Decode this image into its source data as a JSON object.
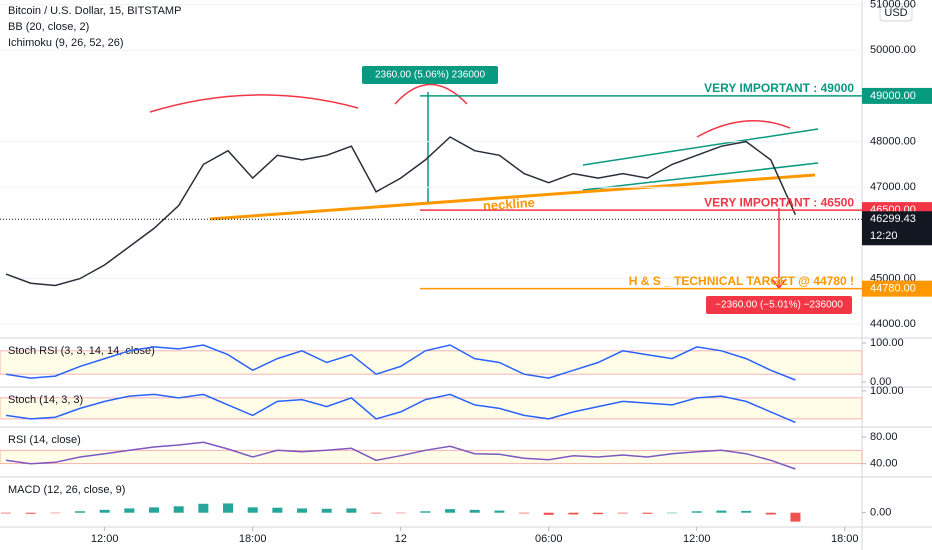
{
  "chart_data": [
    {
      "type": "line",
      "title": "Bitcoin / U.S. Dollar, 15, BITSTAMP",
      "indicators": [
        "BB (20, close, 2)",
        "Ichimoku (9, 26, 52, 26)"
      ],
      "currency": "USD",
      "categories": [
        null,
        null,
        null,
        null,
        "12:00",
        null,
        null,
        null,
        null,
        null,
        "18:00",
        null,
        null,
        null,
        null,
        null,
        "12",
        null,
        null,
        null,
        null,
        null,
        "06:00",
        null,
        null,
        null,
        null,
        null,
        "12:00",
        null,
        null,
        null,
        null,
        null,
        "18:00"
      ],
      "series": [
        {
          "name": "close",
          "color": "#2a2e39",
          "values": [
            45100,
            44900,
            44850,
            45000,
            45300,
            45700,
            46100,
            46600,
            47500,
            47800,
            47200,
            47700,
            47600,
            47700,
            47900,
            46900,
            47200,
            47600,
            48100,
            47800,
            47700,
            47300,
            47100,
            47300,
            47200,
            47300,
            47200,
            47500,
            47700,
            47900,
            48000,
            47600,
            46400,
            null,
            null
          ]
        }
      ],
      "ylim": [
        43700,
        51100
      ],
      "yticks": [
        {
          "value": 44000,
          "label": "44000.00"
        },
        {
          "value": 45000,
          "label": "45000.00"
        },
        {
          "value": 47000,
          "label": "47000.00"
        },
        {
          "value": 48000,
          "label": "48000.00"
        },
        {
          "value": 50000,
          "label": "50000.00"
        },
        {
          "value": 51000,
          "label": "51000.00"
        }
      ],
      "grid": true,
      "levels": [
        {
          "value": 49000,
          "price_label": "49000.00",
          "text": "VERY IMPORTANT : 49000",
          "color": "#089981"
        },
        {
          "value": 46500,
          "price_label": "46500.00",
          "text": "VERY IMPORTANT : 46500",
          "color": "#f23645"
        },
        {
          "value": 44780,
          "price_label": "44780.00",
          "text": "H & S _ TECHNICAL TARGET @ 44780 !",
          "color": "#ff9800"
        }
      ],
      "last_price": 46299.43,
      "countdown": "12:20",
      "measures": [
        "2360.00 (5.06%) 236000",
        "−2360.00 (−5.01%) −236000"
      ],
      "neckline": "neckline"
    },
    {
      "type": "line",
      "title": "Stoch RSI (3, 3, 14, 14, close)",
      "ylim": [
        -13,
        113
      ],
      "yticks": [
        {
          "value": 100,
          "label": "100.00"
        },
        {
          "value": 0,
          "label": "0.00"
        }
      ],
      "band": [
        20,
        80
      ],
      "series": [
        {
          "name": "K",
          "color": "#2962ff",
          "values": [
            20,
            10,
            15,
            40,
            60,
            80,
            90,
            85,
            95,
            70,
            30,
            60,
            80,
            50,
            70,
            20,
            40,
            80,
            95,
            60,
            50,
            20,
            10,
            30,
            50,
            80,
            70,
            60,
            90,
            80,
            60,
            30,
            5
          ]
        }
      ]
    },
    {
      "type": "line",
      "title": "Stoch (14, 3, 3)",
      "ylim": [
        -3,
        111
      ],
      "yticks": [
        {
          "value": 100,
          "label": "100.00"
        }
      ],
      "band": [
        20,
        80
      ],
      "series": [
        {
          "name": "K",
          "color": "#2962ff",
          "values": [
            30,
            20,
            25,
            50,
            70,
            85,
            90,
            80,
            90,
            60,
            30,
            70,
            75,
            55,
            80,
            20,
            40,
            75,
            90,
            60,
            50,
            30,
            20,
            40,
            55,
            70,
            65,
            60,
            80,
            85,
            70,
            40,
            10
          ]
        }
      ]
    },
    {
      "type": "line",
      "title": "RSI (14, close)",
      "ylim": [
        20,
        95
      ],
      "yticks": [
        {
          "value": 80,
          "label": "80.00"
        },
        {
          "value": 40,
          "label": "40.00"
        }
      ],
      "band": [
        40,
        60
      ],
      "series": [
        {
          "name": "RSI",
          "color": "#7e57c2",
          "values": [
            45,
            40,
            42,
            50,
            55,
            60,
            65,
            68,
            72,
            62,
            50,
            60,
            58,
            60,
            63,
            45,
            52,
            60,
            66,
            55,
            54,
            48,
            46,
            52,
            50,
            53,
            50,
            55,
            58,
            60,
            55,
            45,
            32
          ]
        }
      ]
    },
    {
      "type": "bar",
      "title": "MACD (12, 26, close, 9)",
      "ylim": [
        -400,
        1000
      ],
      "yticks": [
        {
          "value": 0,
          "label": "0.00"
        }
      ],
      "up_color": "#26a69a",
      "down_color": "#ef5350",
      "values": [
        -20,
        -30,
        -10,
        40,
        80,
        120,
        150,
        180,
        250,
        260,
        150,
        140,
        120,
        110,
        120,
        -20,
        -10,
        40,
        100,
        80,
        60,
        -20,
        -60,
        -50,
        -40,
        -20,
        -30,
        0,
        40,
        60,
        50,
        -50,
        -250
      ]
    }
  ]
}
